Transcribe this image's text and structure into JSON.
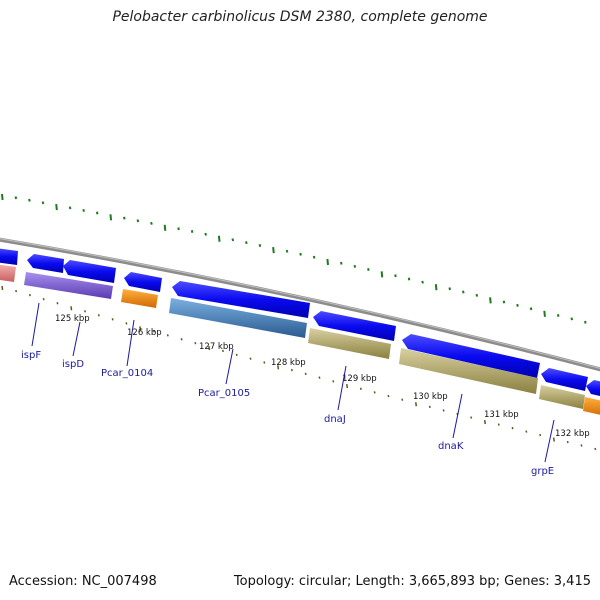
{
  "title": "Pelobacter carbinolicus DSM 2380, complete genome",
  "footer": {
    "accession": "Accession: NC_007498",
    "summary": "Topology: circular; Length: 3,665,893 bp; Genes: 3,415"
  },
  "ticks": [
    "125 kbp",
    "126 kbp",
    "127 kbp",
    "128 kbp",
    "129 kbp",
    "130 kbp",
    "131 kbp",
    "132 kbp"
  ],
  "genes": [
    "ispF",
    "ispD",
    "Pcar_0104",
    "Pcar_0105",
    "dnaJ",
    "dnaK",
    "grpE"
  ],
  "colors": {
    "backbone": "#8c8c8c",
    "cds": "#1010f0",
    "gc_tick": "#1f7a1f",
    "pink": "#e88a8a",
    "purple": "#7a5ad0",
    "orange": "#ff8c00",
    "steel": "#4a86c0",
    "khaki": "#b8b070",
    "label": "#1a1aa0"
  }
}
